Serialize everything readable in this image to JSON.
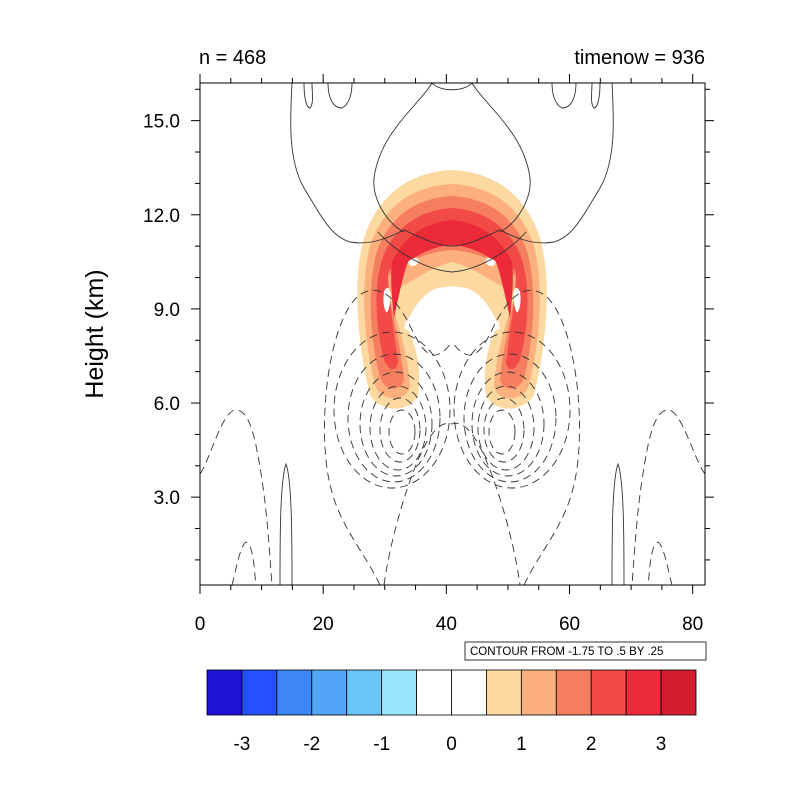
{
  "chart_data": {
    "type": "contour",
    "left_title": "n = 468",
    "right_title": "timenow = 936",
    "ylabel": "Height (km)",
    "xlabel": "",
    "xlim": [
      0,
      82
    ],
    "ylim": [
      0.2,
      16.2
    ],
    "x_ticks": [
      0,
      20,
      40,
      60,
      80
    ],
    "x_tick_labels": [
      "0",
      "20",
      "40",
      "60",
      "80"
    ],
    "y_ticks": [
      3.0,
      6.0,
      9.0,
      12.0,
      15.0
    ],
    "y_tick_labels": [
      "3.0",
      "6.0",
      "9.0",
      "12.0",
      "15.0"
    ],
    "contour_info": "CONTOUR FROM -1.75 TO .5 BY .25",
    "line_contour_levels": [
      -1.75,
      -1.5,
      -1.25,
      -1.0,
      -0.75,
      -0.5,
      -0.25,
      0,
      0.25,
      0.5
    ],
    "colorbar": {
      "boundaries": [
        -3.5,
        -3,
        -2.5,
        -2,
        -1.5,
        -1,
        -0.5,
        0,
        0.5,
        1,
        1.5,
        2,
        2.5,
        3,
        3.5
      ],
      "labels": [
        "-3",
        "-2",
        "-1",
        "0",
        "1",
        "2",
        "3"
      ],
      "label_values": [
        -3,
        -2,
        -1,
        0,
        1,
        2,
        3
      ],
      "colors": [
        "#1f12d6",
        "#2450ff",
        "#3d86f6",
        "#52a6f5",
        "#6bc6f7",
        "#98e6fc",
        "#ffffff",
        "#ffffff",
        "#fcd9a0",
        "#fbb07e",
        "#f57e60",
        "#f24a46",
        "#ec2a3a",
        "#d31e30"
      ]
    },
    "filled_features": [
      {
        "name": "red-cap",
        "value_range": [
          1.5,
          3.5
        ],
        "x_center": 41,
        "y_range_km": [
          9.0,
          13.2
        ]
      },
      {
        "name": "left-lobe",
        "value_range": [
          0.5,
          2.5
        ],
        "x_center": 31,
        "y_range_km": [
          5.8,
          9.5
        ]
      },
      {
        "name": "right-lobe",
        "value_range": [
          0.5,
          2.5
        ],
        "x_center": 51,
        "y_range_km": [
          5.8,
          9.5
        ]
      }
    ]
  }
}
